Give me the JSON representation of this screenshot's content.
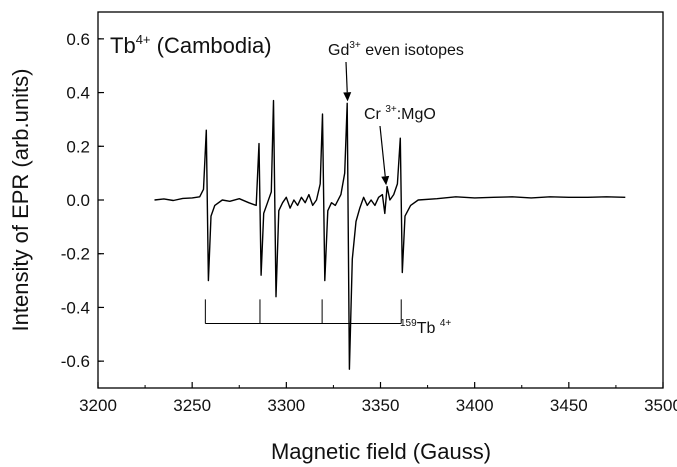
{
  "chart_data": {
    "type": "line",
    "xlabel": "Magnetic field (Gauss)",
    "ylabel": "Intensity of EPR (arb.units)",
    "xlim": [
      3200,
      3500
    ],
    "ylim": [
      -0.7,
      0.7
    ],
    "xticks": [
      3200,
      3250,
      3300,
      3350,
      3400,
      3450,
      3500
    ],
    "xtick_labels": [
      "3200",
      "3250",
      "3300",
      "3350",
      "3400",
      "3450",
      "3500"
    ],
    "yticks": [
      -0.6,
      -0.4,
      -0.2,
      0.0,
      0.2,
      0.4,
      0.6
    ],
    "ytick_labels": [
      "-0.6",
      "-0.4",
      "-0.2",
      "0.0",
      "0.2",
      "0.4",
      "0.6"
    ],
    "grid": false,
    "line_color": "#000000",
    "annotations": {
      "title": {
        "base": "Tb",
        "sup": "4+",
        "rest": " (Cambodia)"
      },
      "gd": {
        "base": "Gd",
        "sup": "3+",
        "rest": " even isotopes",
        "arrow_target": [
          3332,
          0.36
        ]
      },
      "cr": {
        "base": "Cr ",
        "sup": "3+",
        "rest": ":MgO",
        "arrow_target": [
          3353,
          0.04
        ]
      },
      "tb": {
        "presup": "159",
        "base": "Tb ",
        "sup": "4+"
      }
    },
    "hyperfine_stick": {
      "positions": [
        3257,
        3286,
        3319,
        3361
      ],
      "y_top": -0.37,
      "y_bottom": -0.46
    },
    "series": [
      {
        "points": [
          [
            3230,
            0.0
          ],
          [
            3235,
            0.004
          ],
          [
            3240,
            -0.002
          ],
          [
            3245,
            0.006
          ],
          [
            3250,
            0.008
          ],
          [
            3254,
            0.012
          ],
          [
            3256,
            0.04
          ],
          [
            3257.5,
            0.26
          ],
          [
            3258.6,
            -0.3
          ],
          [
            3260,
            -0.06
          ],
          [
            3262,
            -0.02
          ],
          [
            3266,
            0.0
          ],
          [
            3270,
            -0.005
          ],
          [
            3275,
            0.005
          ],
          [
            3280,
            -0.01
          ],
          [
            3284,
            -0.02
          ],
          [
            3285.5,
            0.21
          ],
          [
            3286.6,
            -0.28
          ],
          [
            3288,
            -0.05
          ],
          [
            3290,
            -0.01
          ],
          [
            3292,
            0.03
          ],
          [
            3293.2,
            0.37
          ],
          [
            3294.5,
            -0.36
          ],
          [
            3296,
            -0.04
          ],
          [
            3298,
            -0.01
          ],
          [
            3300,
            0.01
          ],
          [
            3302,
            -0.03
          ],
          [
            3304,
            0.0
          ],
          [
            3306,
            -0.02
          ],
          [
            3308,
            0.01
          ],
          [
            3310,
            -0.01
          ],
          [
            3312,
            0.02
          ],
          [
            3314,
            -0.02
          ],
          [
            3316,
            0.0
          ],
          [
            3318,
            0.06
          ],
          [
            3319.2,
            0.32
          ],
          [
            3320.4,
            -0.3
          ],
          [
            3322,
            -0.04
          ],
          [
            3324,
            -0.01
          ],
          [
            3326,
            -0.02
          ],
          [
            3329,
            0.02
          ],
          [
            3331,
            0.1
          ],
          [
            3332.3,
            0.36
          ],
          [
            3333.5,
            -0.63
          ],
          [
            3335,
            -0.22
          ],
          [
            3337,
            -0.08
          ],
          [
            3339,
            -0.03
          ],
          [
            3341,
            0.01
          ],
          [
            3343,
            -0.02
          ],
          [
            3345,
            0.0
          ],
          [
            3347,
            -0.02
          ],
          [
            3349,
            0.01
          ],
          [
            3351,
            0.02
          ],
          [
            3352.3,
            -0.05
          ],
          [
            3353.5,
            0.05
          ],
          [
            3355,
            0.0
          ],
          [
            3357,
            0.02
          ],
          [
            3359,
            0.06
          ],
          [
            3360.5,
            0.23
          ],
          [
            3361.6,
            -0.27
          ],
          [
            3363,
            -0.06
          ],
          [
            3366,
            -0.02
          ],
          [
            3370,
            0.0
          ],
          [
            3380,
            0.005
          ],
          [
            3390,
            0.012
          ],
          [
            3400,
            0.008
          ],
          [
            3410,
            0.01
          ],
          [
            3420,
            0.012
          ],
          [
            3430,
            0.008
          ],
          [
            3440,
            0.012
          ],
          [
            3450,
            0.01
          ],
          [
            3460,
            0.01
          ],
          [
            3470,
            0.012
          ],
          [
            3480,
            0.01
          ]
        ]
      }
    ]
  }
}
